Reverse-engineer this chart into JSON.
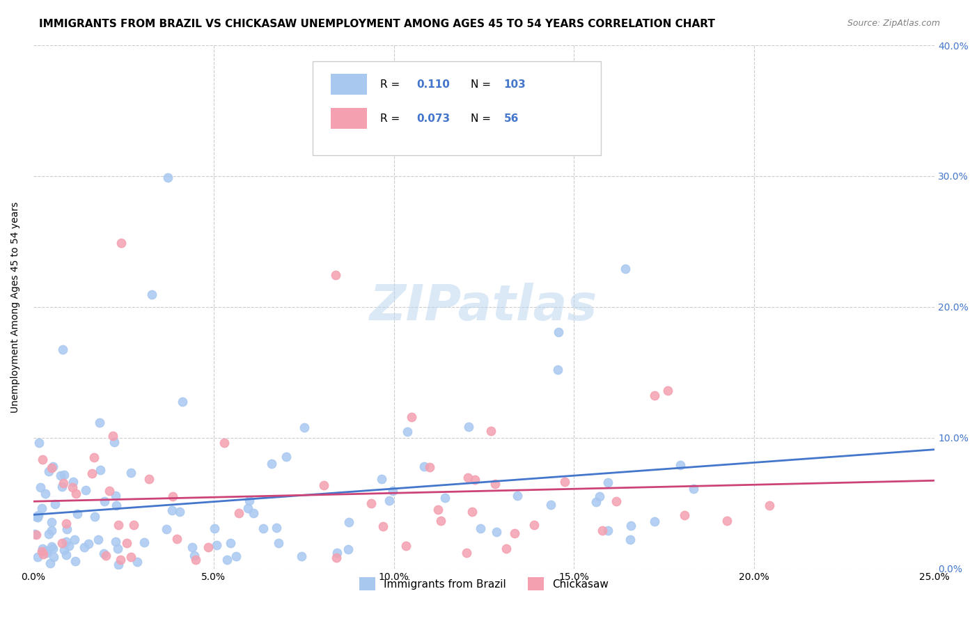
{
  "title": "IMMIGRANTS FROM BRAZIL VS CHICKASAW UNEMPLOYMENT AMONG AGES 45 TO 54 YEARS CORRELATION CHART",
  "source": "Source: ZipAtlas.com",
  "ylabel": "Unemployment Among Ages 45 to 54 years",
  "xlabel_ticks": [
    "0.0%",
    "5.0%",
    "10.0%",
    "15.0%",
    "20.0%",
    "25.0%"
  ],
  "ylabel_ticks": [
    "0.0%",
    "10.0%",
    "20.0%",
    "30.0%",
    "40.0%"
  ],
  "xlim": [
    0.0,
    0.25
  ],
  "ylim": [
    0.0,
    0.4
  ],
  "brazil_R": 0.11,
  "brazil_N": 103,
  "chickasaw_R": 0.073,
  "chickasaw_N": 56,
  "brazil_color": "#a8c8f0",
  "brazil_line_color": "#4477cc",
  "chickasaw_color": "#f4a0b0",
  "chickasaw_line_color": "#cc4477",
  "watermark": "ZIPatlas",
  "legend_label_brazil": "Immigrants from Brazil",
  "legend_label_chickasaw": "Chickasaw",
  "title_fontsize": 11,
  "axis_label_fontsize": 10,
  "source_fontsize": 9,
  "brazil_seed": 42,
  "chickasaw_seed": 7
}
